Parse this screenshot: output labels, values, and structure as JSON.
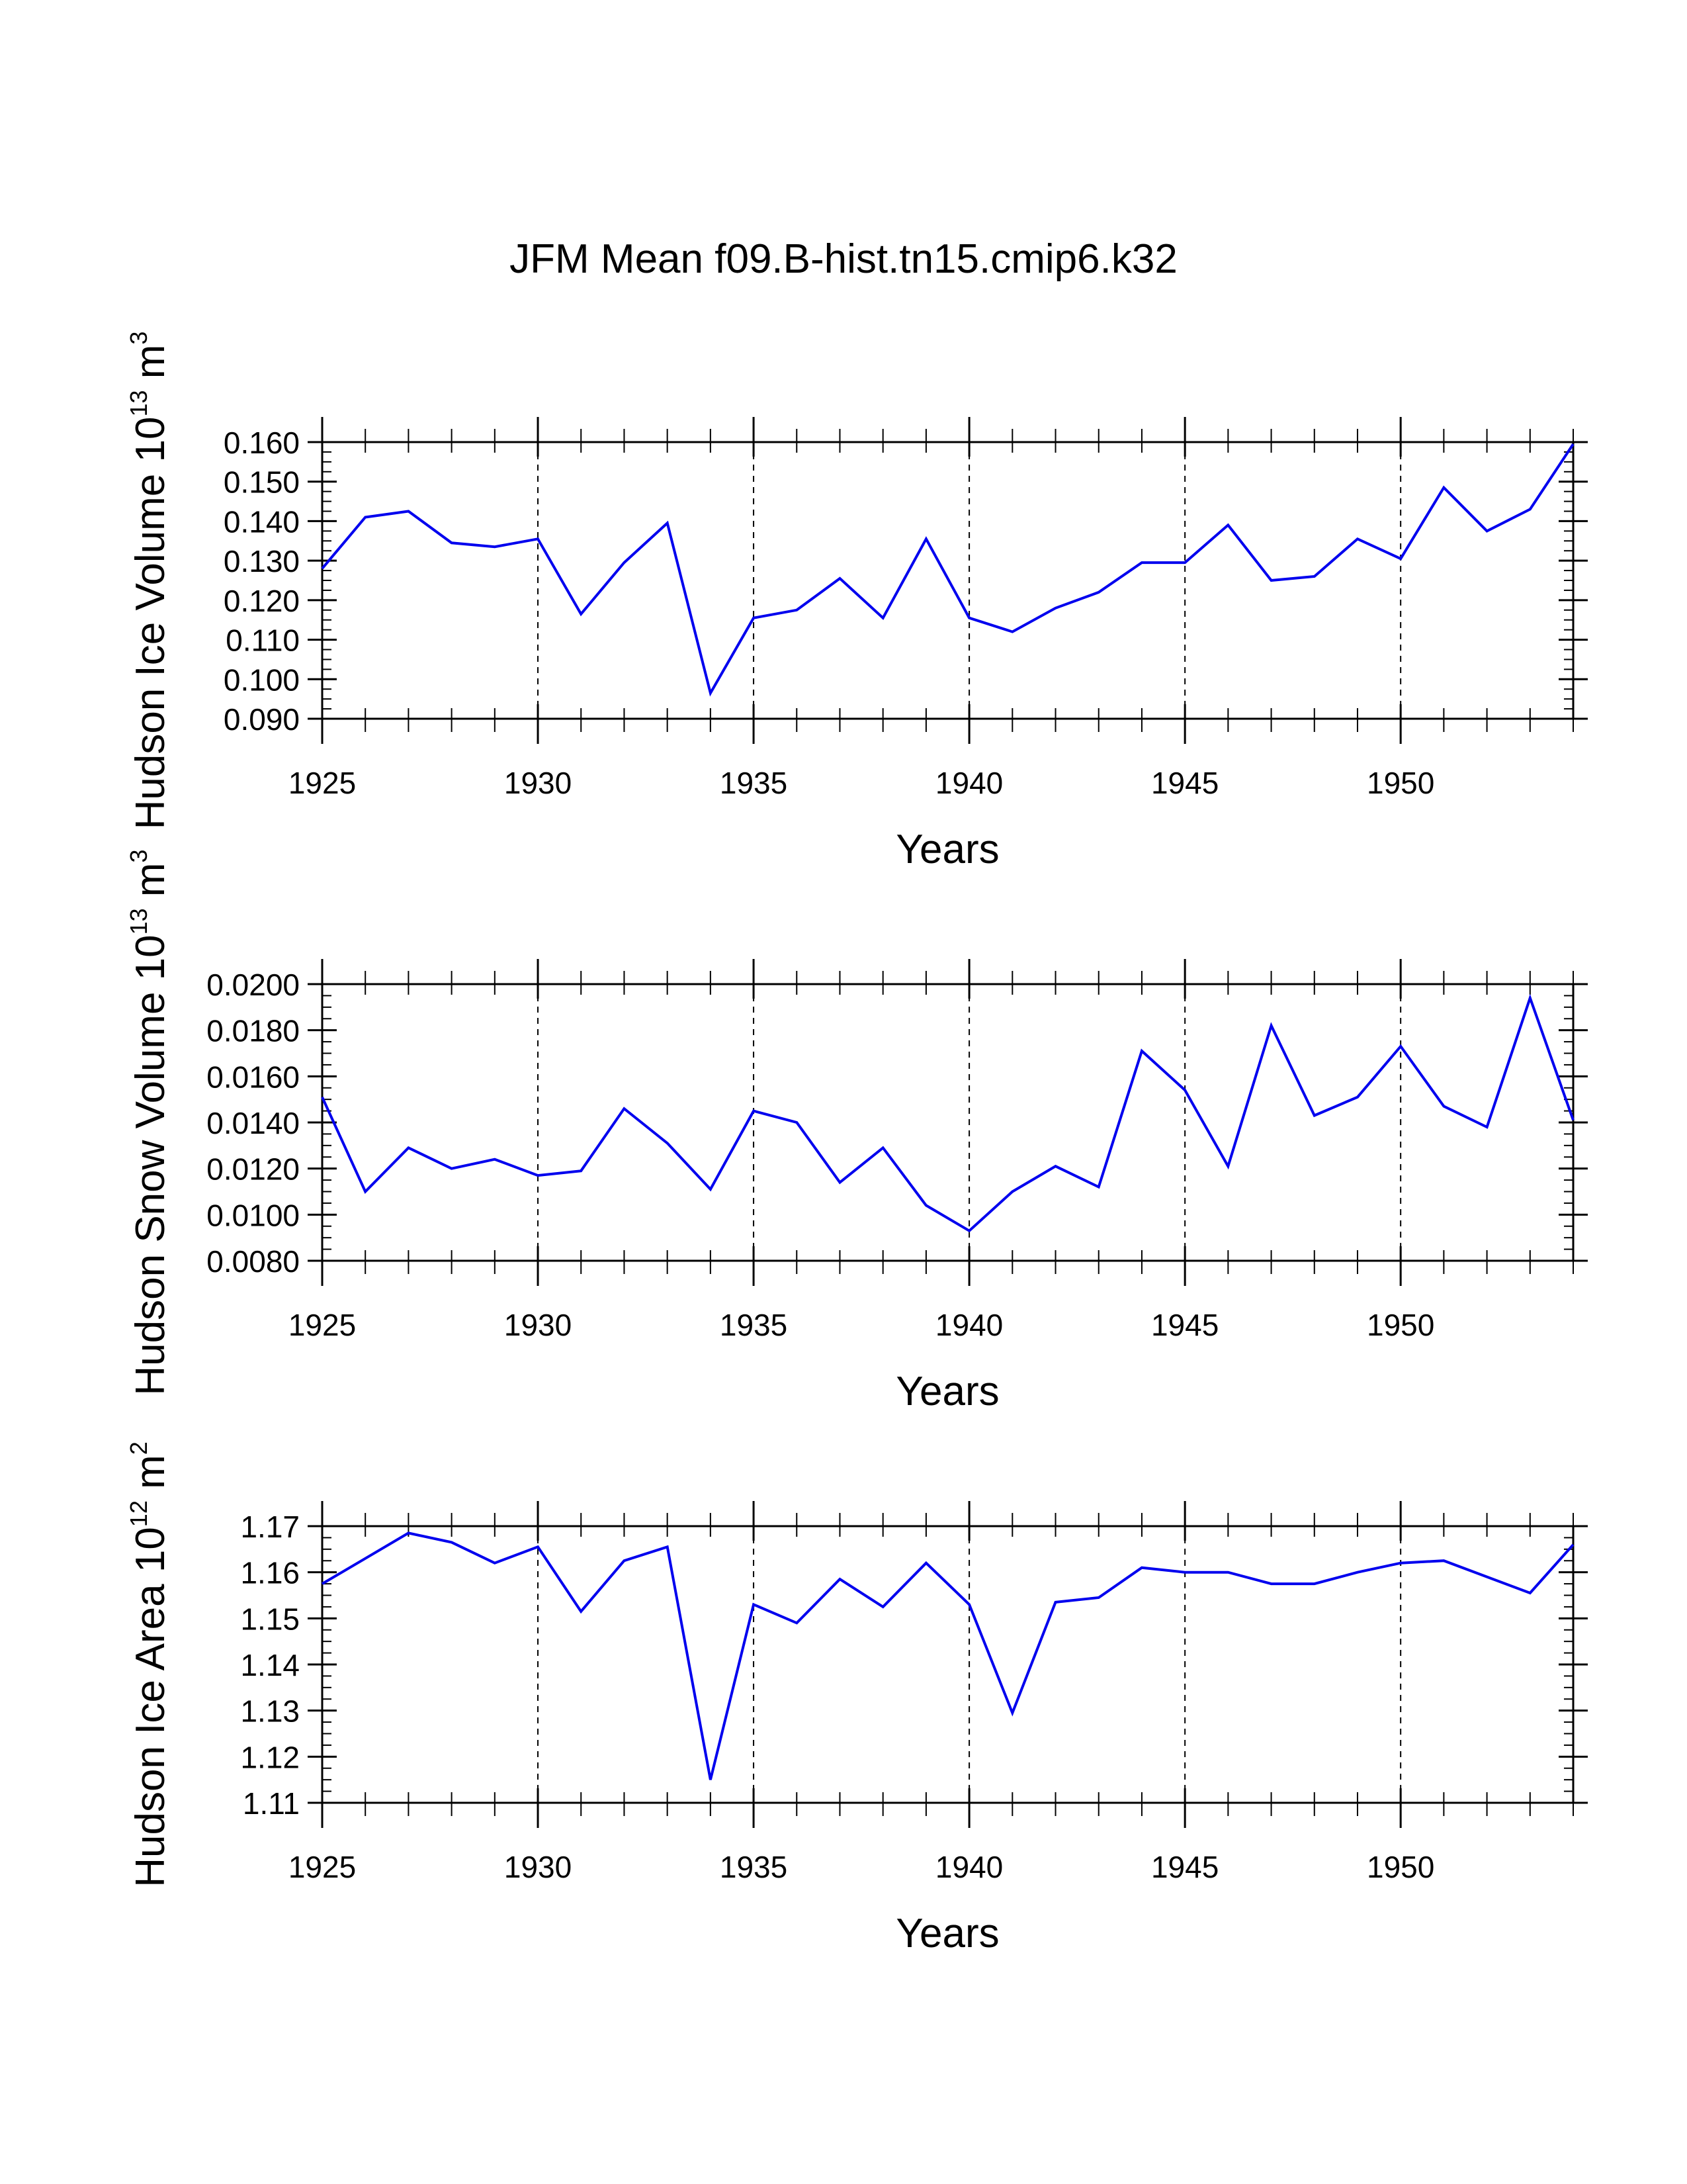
{
  "title": "JFM Mean f09.B-hist.tn15.cmip6.k32",
  "colors": {
    "line": "#0000ee",
    "axis": "#000000",
    "grid": "#000000",
    "background": "#ffffff"
  },
  "chart_data": [
    {
      "type": "line",
      "name": "ice-volume",
      "ylabel_main": "Hudson Ice Volume 10",
      "ylabel_exp": "13",
      "ylabel_unit": " m",
      "ylabel_unit_exp": "3",
      "xlabel": "Years",
      "xlim": [
        1925,
        1954
      ],
      "ylim": [
        0.09,
        0.16
      ],
      "yticks": [
        0.09,
        0.1,
        0.11,
        0.12,
        0.13,
        0.14,
        0.15,
        0.16
      ],
      "ytick_labels": [
        "0.090",
        "0.100",
        "0.110",
        "0.120",
        "0.130",
        "0.140",
        "0.150",
        "0.160"
      ],
      "yminor_step": 0.0025,
      "xticks": [
        1925,
        1930,
        1935,
        1940,
        1945,
        1950
      ],
      "xtick_labels": [
        "1925",
        "1930",
        "1935",
        "1940",
        "1945",
        "1950"
      ],
      "xgrid": [
        1930,
        1935,
        1940,
        1945,
        1950
      ],
      "x": [
        1925,
        1926,
        1927,
        1928,
        1929,
        1930,
        1931,
        1932,
        1933,
        1934,
        1935,
        1936,
        1937,
        1938,
        1939,
        1940,
        1941,
        1942,
        1943,
        1944,
        1945,
        1946,
        1947,
        1948,
        1949,
        1950,
        1951,
        1952,
        1953,
        1954
      ],
      "y": [
        0.128,
        0.141,
        0.1425,
        0.1345,
        0.1335,
        0.1355,
        0.1165,
        0.1295,
        0.1395,
        0.0965,
        0.1155,
        0.1175,
        0.1255,
        0.1155,
        0.1355,
        0.1155,
        0.112,
        0.118,
        0.122,
        0.1295,
        0.1295,
        0.139,
        0.125,
        0.126,
        0.1355,
        0.1305,
        0.1485,
        0.1375,
        0.143,
        0.1595
      ]
    },
    {
      "type": "line",
      "name": "snow-volume",
      "ylabel_main": "Hudson Snow Volume 10",
      "ylabel_exp": "13",
      "ylabel_unit": " m",
      "ylabel_unit_exp": "3",
      "xlabel": "Years",
      "xlim": [
        1925,
        1954
      ],
      "ylim": [
        0.008,
        0.02
      ],
      "yticks": [
        0.008,
        0.01,
        0.012,
        0.014,
        0.016,
        0.018,
        0.02
      ],
      "ytick_labels": [
        "0.0080",
        "0.0100",
        "0.0120",
        "0.0140",
        "0.0160",
        "0.0180",
        "0.0200"
      ],
      "yminor_step": 0.0005,
      "xticks": [
        1925,
        1930,
        1935,
        1940,
        1945,
        1950
      ],
      "xtick_labels": [
        "1925",
        "1930",
        "1935",
        "1940",
        "1945",
        "1950"
      ],
      "xgrid": [
        1930,
        1935,
        1940,
        1945,
        1950
      ],
      "x": [
        1925,
        1926,
        1927,
        1928,
        1929,
        1930,
        1931,
        1932,
        1933,
        1934,
        1935,
        1936,
        1937,
        1938,
        1939,
        1940,
        1941,
        1942,
        1943,
        1944,
        1945,
        1946,
        1947,
        1948,
        1949,
        1950,
        1951,
        1952,
        1953,
        1954
      ],
      "y": [
        0.0151,
        0.011,
        0.0129,
        0.012,
        0.0124,
        0.0117,
        0.0119,
        0.0146,
        0.0131,
        0.0111,
        0.0145,
        0.014,
        0.0114,
        0.0129,
        0.0104,
        0.0093,
        0.011,
        0.0121,
        0.0112,
        0.0171,
        0.0154,
        0.0121,
        0.0182,
        0.0143,
        0.0151,
        0.0173,
        0.0147,
        0.0138,
        0.0194,
        0.0141
      ]
    },
    {
      "type": "line",
      "name": "ice-area",
      "ylabel_main": "Hudson Ice Area 10",
      "ylabel_exp": "12",
      "ylabel_unit": " m",
      "ylabel_unit_exp": "2",
      "xlabel": "Years",
      "xlim": [
        1925,
        1954
      ],
      "ylim": [
        1.11,
        1.17
      ],
      "yticks": [
        1.11,
        1.12,
        1.13,
        1.14,
        1.15,
        1.16,
        1.17
      ],
      "ytick_labels": [
        "1.11",
        "1.12",
        "1.13",
        "1.14",
        "1.15",
        "1.16",
        "1.17"
      ],
      "yminor_step": 0.0025,
      "xticks": [
        1925,
        1930,
        1935,
        1940,
        1945,
        1950
      ],
      "xtick_labels": [
        "1925",
        "1930",
        "1935",
        "1940",
        "1945",
        "1950"
      ],
      "xgrid": [
        1930,
        1935,
        1940,
        1945,
        1950
      ],
      "x": [
        1925,
        1926,
        1927,
        1928,
        1929,
        1930,
        1931,
        1932,
        1933,
        1934,
        1935,
        1936,
        1937,
        1938,
        1939,
        1940,
        1941,
        1942,
        1943,
        1944,
        1945,
        1946,
        1947,
        1948,
        1949,
        1950,
        1951,
        1952,
        1953,
        1954
      ],
      "y": [
        1.1575,
        1.163,
        1.1685,
        1.1665,
        1.162,
        1.1655,
        1.1515,
        1.1625,
        1.1655,
        1.115,
        1.153,
        1.149,
        1.1585,
        1.1525,
        1.162,
        1.153,
        1.1295,
        1.1535,
        1.1545,
        1.161,
        1.16,
        1.16,
        1.1575,
        1.1575,
        1.16,
        1.162,
        1.1625,
        1.159,
        1.1555,
        1.166
      ]
    }
  ]
}
